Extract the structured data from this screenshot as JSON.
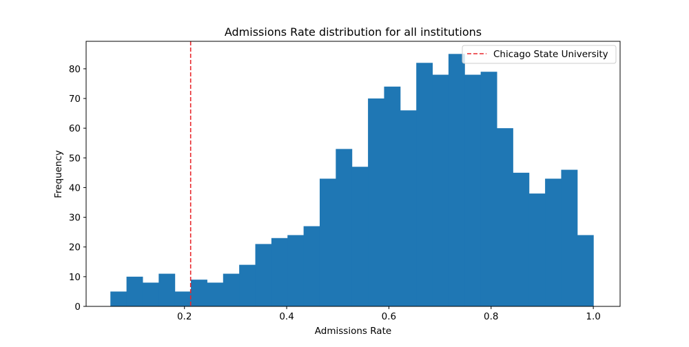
{
  "chart_data": {
    "type": "bar",
    "title": "Admissions Rate distribution for all institutions",
    "xlabel": "Admissions Rate",
    "ylabel": "Frequency",
    "xlim": [
      0.0076,
      1.0524
    ],
    "ylim": [
      0,
      89.25
    ],
    "xticks": [
      0.2,
      0.4,
      0.6,
      0.8,
      1.0
    ],
    "xtick_labels": [
      "0.2",
      "0.4",
      "0.6",
      "0.8",
      "1.0"
    ],
    "yticks": [
      0,
      10,
      20,
      30,
      40,
      50,
      60,
      70,
      80
    ],
    "ytick_labels": [
      "0",
      "10",
      "20",
      "30",
      "40",
      "50",
      "60",
      "70",
      "80"
    ],
    "bins": {
      "start": 0.0551,
      "width": 0.0315,
      "counts": [
        5,
        10,
        8,
        11,
        5,
        9,
        8,
        11,
        14,
        21,
        23,
        24,
        27,
        43,
        53,
        47,
        70,
        74,
        66,
        82,
        78,
        85,
        78,
        79,
        60,
        45,
        38,
        43,
        46,
        24
      ]
    },
    "bar_color": "#1f77b4",
    "reference_line": {
      "x": 0.2121,
      "label": "Chicago State University",
      "color": "#e8262b",
      "style": "dashed"
    },
    "legend": {
      "position": "top-right",
      "entries": [
        "Chicago State University"
      ]
    },
    "grid": false
  }
}
